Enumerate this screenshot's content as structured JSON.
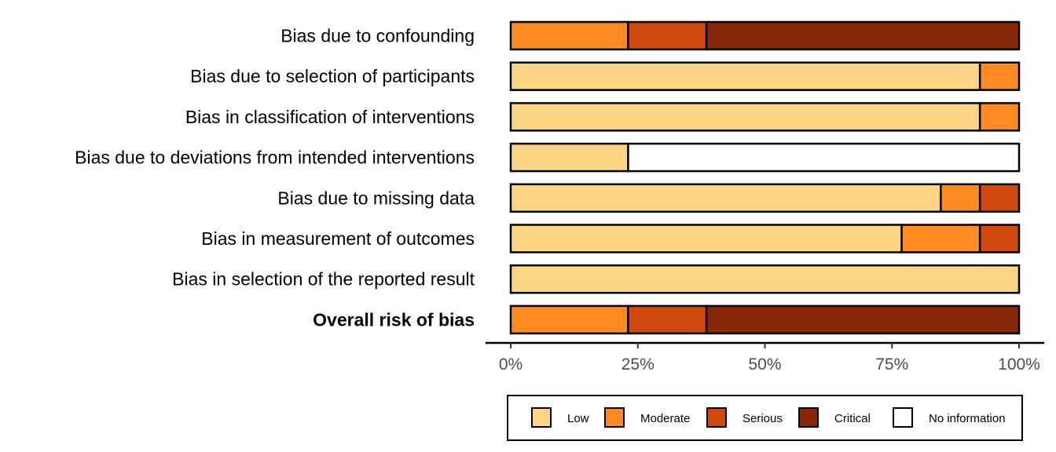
{
  "chart_data": {
    "type": "bar",
    "orientation": "horizontal",
    "stacked": true,
    "percent": true,
    "categories": [
      "Bias due to confounding",
      "Bias due to selection of participants",
      "Bias in classification of interventions",
      "Bias due to deviations from intended interventions",
      "Bias due to missing data",
      "Bias in measurement of outcomes",
      "Bias in selection of the reported result",
      "Overall risk of bias"
    ],
    "bold_category": "Overall risk of bias",
    "series": [
      {
        "name": "Low",
        "color": "#FDD587",
        "values": [
          0,
          92.3,
          92.3,
          23.1,
          84.6,
          76.9,
          100,
          0
        ]
      },
      {
        "name": "Moderate",
        "color": "#FB8A23",
        "values": [
          23.1,
          7.7,
          7.7,
          0,
          7.7,
          15.4,
          0,
          23.1
        ]
      },
      {
        "name": "Serious",
        "color": "#D0490F",
        "values": [
          15.4,
          0,
          0,
          0,
          7.7,
          7.7,
          0,
          15.4
        ]
      },
      {
        "name": "Critical",
        "color": "#86270A",
        "values": [
          61.5,
          0,
          0,
          0,
          0,
          0,
          0,
          61.5
        ]
      },
      {
        "name": "No information",
        "color": "#FFFFFF",
        "values": [
          0,
          0,
          0,
          76.9,
          0,
          0,
          0,
          0
        ]
      }
    ],
    "xticks": [
      "0%",
      "25%",
      "50%",
      "75%",
      "100%"
    ],
    "xlim": [
      0,
      100
    ],
    "title": "",
    "xlabel": "",
    "ylabel": "",
    "legend_position": "bottom",
    "grid": false
  }
}
